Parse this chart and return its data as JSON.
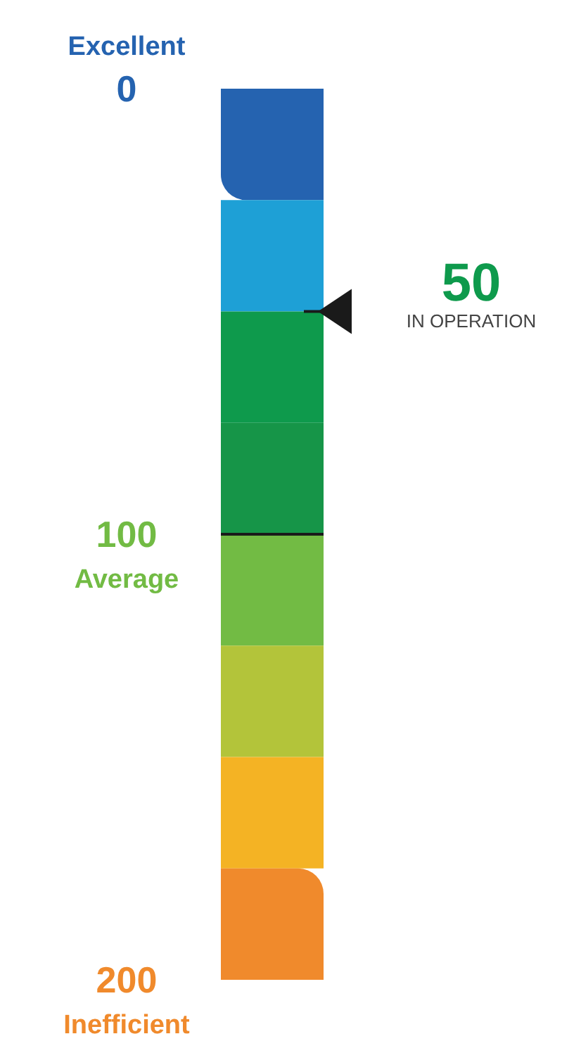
{
  "chart_data": {
    "type": "bar",
    "categories": [
      null
    ],
    "stacked": true,
    "ylim": [
      200,
      0
    ],
    "yticks": [
      0,
      100,
      200
    ],
    "series": [
      {
        "color": "#2563b0",
        "values": [
          25
        ]
      },
      {
        "color": "#1ea0d6",
        "values": [
          25
        ]
      },
      {
        "color": "#0e9a4c",
        "values": [
          25
        ]
      },
      {
        "color": "#169548",
        "values": [
          25
        ]
      },
      {
        "color": "#72bb44",
        "values": [
          25
        ]
      },
      {
        "color": "#b3c43a",
        "values": [
          25
        ]
      },
      {
        "color": "#f4b324",
        "values": [
          25
        ]
      },
      {
        "color": "#f08a2c",
        "values": [
          25
        ]
      }
    ],
    "ref_lines": [
      {
        "axis": "y",
        "value": 100,
        "label": "Average",
        "color": "#1a1a1a"
      },
      {
        "axis": "y",
        "value": 50,
        "label": "IN OPERATION"
      }
    ],
    "annotations": [
      "Excellent",
      "50",
      "Inefficient"
    ]
  }
}
